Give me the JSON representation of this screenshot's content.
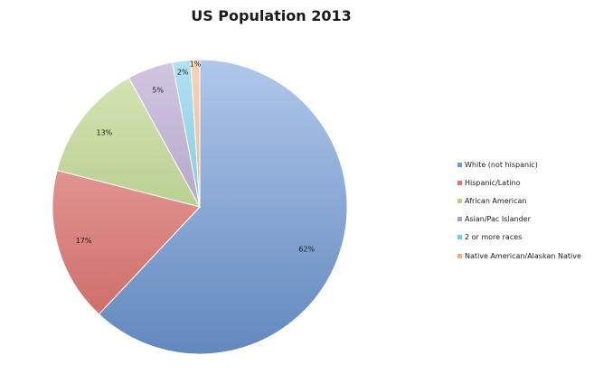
{
  "chart_data": {
    "type": "pie",
    "title": "US Population 2013",
    "categories": [
      "White (not hispanic)",
      "Hispanic/Latino",
      "African American",
      "Asian/Pac Islander",
      "2 or more races",
      "Native American/Alaskan Native"
    ],
    "values": [
      62,
      17,
      13,
      5,
      2,
      1
    ],
    "value_labels": [
      "62%",
      "17%",
      "13%",
      "5%",
      "2%",
      "1%"
    ],
    "colors": [
      "#6f9bd8",
      "#e4726d",
      "#b5d27c",
      "#ad9acb",
      "#6fcbe8",
      "#f4b07a"
    ],
    "legend_position": "right",
    "start_angle": "top, clockwise"
  }
}
